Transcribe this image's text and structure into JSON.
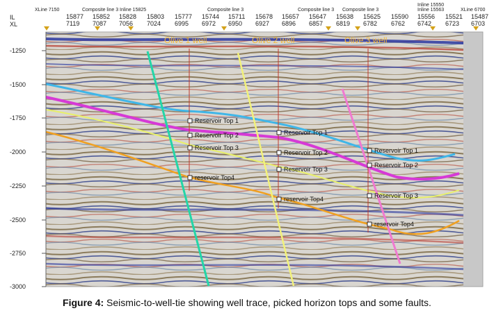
{
  "axes": {
    "row1": "IL",
    "row2": "XL"
  },
  "top_labels": [
    "XLine 7150",
    "Composite line 3",
    "Inline 15825",
    "Composite line 3",
    "Composite line 3",
    "Composite line 3",
    "Inline 15550",
    "Inline 15563",
    "XLine 6700"
  ],
  "il": [
    "15877",
    "15852",
    "15828",
    "15803",
    "15777",
    "15744",
    "15711",
    "15678",
    "15657",
    "15647",
    "15638",
    "15625",
    "15590",
    "15556",
    "15521",
    "15487"
  ],
  "xl": [
    "7119",
    "7087",
    "7056",
    "7024",
    "6995",
    "6972",
    "6950",
    "6927",
    "6896",
    "6857",
    "6819",
    "6782",
    "6762",
    "6742",
    "6723",
    "6703"
  ],
  "depth_ticks": [
    "-1250",
    "-1500",
    "-1750",
    "-2000",
    "-2250",
    "-2500",
    "-2750",
    "-3000"
  ],
  "wells": [
    "Olive 1  well",
    "Olive 2  well",
    "Olive 3  well"
  ],
  "picks": {
    "w1": [
      "Reservoir Top 1",
      "Reservoir Top 2",
      "Reservoir Top 3",
      "reservoir Top4"
    ],
    "w2": [
      "Reservoir Top 1",
      "Reservoir Top 2",
      "Reservoir Top 3",
      "reservoir Top4"
    ],
    "w3": [
      "Reservoir Top 1",
      "Reservoir Top 2",
      "Reservoir Top 3",
      "reservoir Top4"
    ]
  },
  "colors": {
    "horizon_top1": "#3fb6e8",
    "horizon_top2": "#d63ad6",
    "horizon_top3": "#e8f06a",
    "horizon_top4": "#f0a020",
    "fault_green": "#23d6a8",
    "fault_yellow": "#f2f27a",
    "fault_pink": "#f07ad0",
    "well_trace": "#c0392b",
    "well_label": "#f2b83a"
  },
  "caption": {
    "label": "Figure 4:",
    "text": " Seismic-to-well-tie showing well trace, picked horizon tops and some faults."
  }
}
